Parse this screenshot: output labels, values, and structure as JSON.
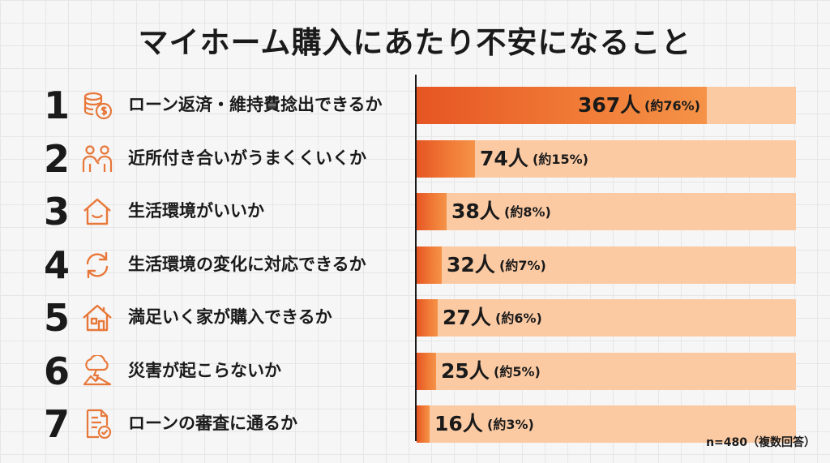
{
  "title": "マイホーム購入にあたり不安になること",
  "note": "n=480（複数回答）",
  "colors": {
    "bar_fill": "#ec6a2e",
    "bar_bg": "#fbcaa3",
    "icon": "#e8783a"
  },
  "chart_data": {
    "type": "bar",
    "orientation": "horizontal",
    "title": "マイホーム購入にあたり不安になること",
    "xlabel": "",
    "ylabel": "",
    "xlim": [
      0,
      480
    ],
    "categories": [
      "ローン返済・維持費捻出できるか",
      "近所付き合いがうまくくいくか",
      "生活環境がいいか",
      "生活環境の変化に対応できるか",
      "満足いく家が購入できるか",
      "災害が起こらないか",
      "ローンの審査に通るか"
    ],
    "values": [
      367,
      74,
      38,
      32,
      27,
      25,
      16
    ],
    "items": [
      {
        "rank": "1",
        "icon": "coins-icon",
        "label": "ローン返済・維持費捻出できるか",
        "value": 367,
        "count_label": "367人",
        "pct_label": "(約76%)"
      },
      {
        "rank": "2",
        "icon": "people-icon",
        "label": "近所付き合いがうまくくいくか",
        "value": 74,
        "count_label": "74人",
        "pct_label": "(約15%)"
      },
      {
        "rank": "3",
        "icon": "smiling-house-icon",
        "label": "生活環境がいいか",
        "value": 38,
        "count_label": "38人",
        "pct_label": "(約8%)"
      },
      {
        "rank": "4",
        "icon": "refresh-icon",
        "label": "生活環境の変化に対応できるか",
        "value": 32,
        "count_label": "32人",
        "pct_label": "(約7%)"
      },
      {
        "rank": "5",
        "icon": "house-icon",
        "label": "満足いく家が購入できるか",
        "value": 27,
        "count_label": "27人",
        "pct_label": "(約6%)"
      },
      {
        "rank": "6",
        "icon": "storm-icon",
        "label": "災害が起こらないか",
        "value": 25,
        "count_label": "25人",
        "pct_label": "(約5%)"
      },
      {
        "rank": "7",
        "icon": "document-check-icon",
        "label": "ローンの審査に通るか",
        "value": 16,
        "count_label": "16人",
        "pct_label": "(約3%)"
      }
    ]
  }
}
